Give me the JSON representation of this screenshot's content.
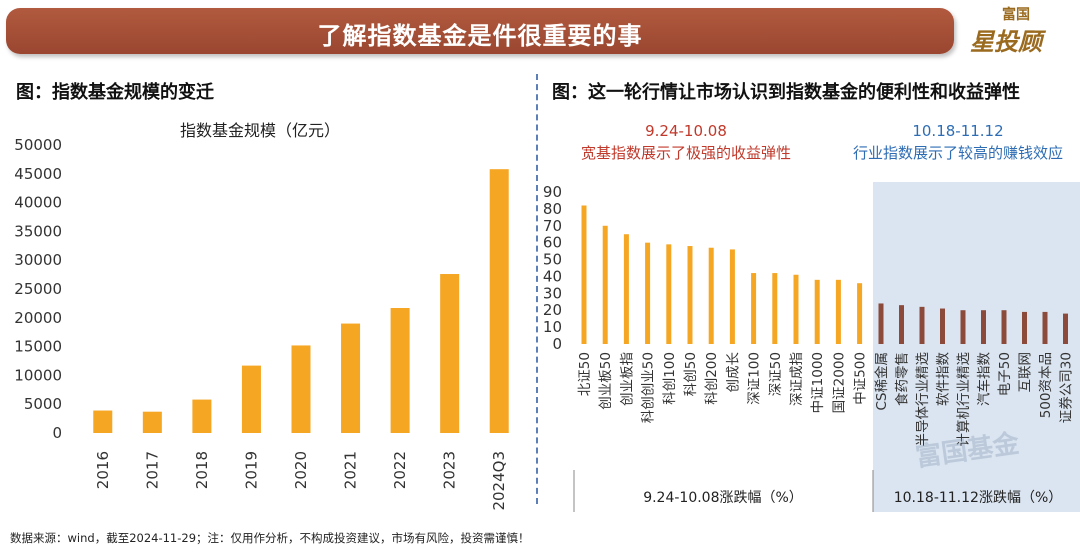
{
  "banner": {
    "title": "了解指数基金是件很重要的事"
  },
  "logo": {
    "top": "富国",
    "main": "星投顾",
    "watermark": "富国基金"
  },
  "left_panel": {
    "title": "图：指数基金规模的变迁"
  },
  "right_panel": {
    "title": "图：这一轮行情让市场认识到指数基金的便利性和收益弹性"
  },
  "footer": "数据来源：wind，截至2024-11-29；注：仅用作分析，不构成投资建议，市场有风险，投资需谨慎！",
  "chart_data": [
    {
      "type": "bar",
      "title": "指数基金规模（亿元）",
      "categories": [
        "2016",
        "2017",
        "2018",
        "2019",
        "2020",
        "2021",
        "2022",
        "2023",
        "2024Q3"
      ],
      "values": [
        3900,
        3700,
        5800,
        11700,
        15200,
        19000,
        21700,
        27600,
        45800
      ],
      "ylim": [
        0,
        50000
      ],
      "yticks": [
        0,
        5000,
        10000,
        15000,
        20000,
        25000,
        30000,
        35000,
        40000,
        45000,
        50000
      ],
      "grid": false,
      "color": "#f5a623"
    },
    {
      "type": "bar",
      "ylim": [
        0,
        90
      ],
      "yticks": [
        0,
        10,
        20,
        30,
        40,
        50,
        60,
        70,
        80,
        90
      ],
      "groups": [
        {
          "period": "9.24-10.08",
          "caption": "宽基指数展示了极强的收益弹性",
          "xlabel": "9.24-10.08涨跌幅（%）",
          "color": "#f5a623",
          "caption_color": "#c0392b",
          "categories": [
            "北证50",
            "创业板50",
            "创业板指",
            "科创创业50",
            "科创100",
            "科创50",
            "科创200",
            "创成长",
            "深证100",
            "深证50",
            "深证成指",
            "中证1000",
            "国证2000",
            "中证500"
          ],
          "values": [
            82,
            70,
            65,
            60,
            59,
            58,
            57,
            56,
            42,
            42,
            41,
            38,
            38,
            36
          ]
        },
        {
          "period": "10.18-11.12",
          "caption": "行业指数展示了较高的赚钱效应",
          "xlabel": "10.18-11.12涨跌幅（%）",
          "color": "#8b4a3a",
          "caption_color": "#2e6db4",
          "background": "#dbe5f1",
          "categories": [
            "CS稀金属",
            "食药零售",
            "半导体行业精选",
            "软件指数",
            "计算机行业精选",
            "汽车指数",
            "电子50",
            "互联网",
            "500资本品",
            "证券公司30"
          ],
          "values": [
            24,
            23,
            22,
            21,
            20,
            20,
            20,
            19,
            19,
            18
          ]
        }
      ]
    }
  ]
}
